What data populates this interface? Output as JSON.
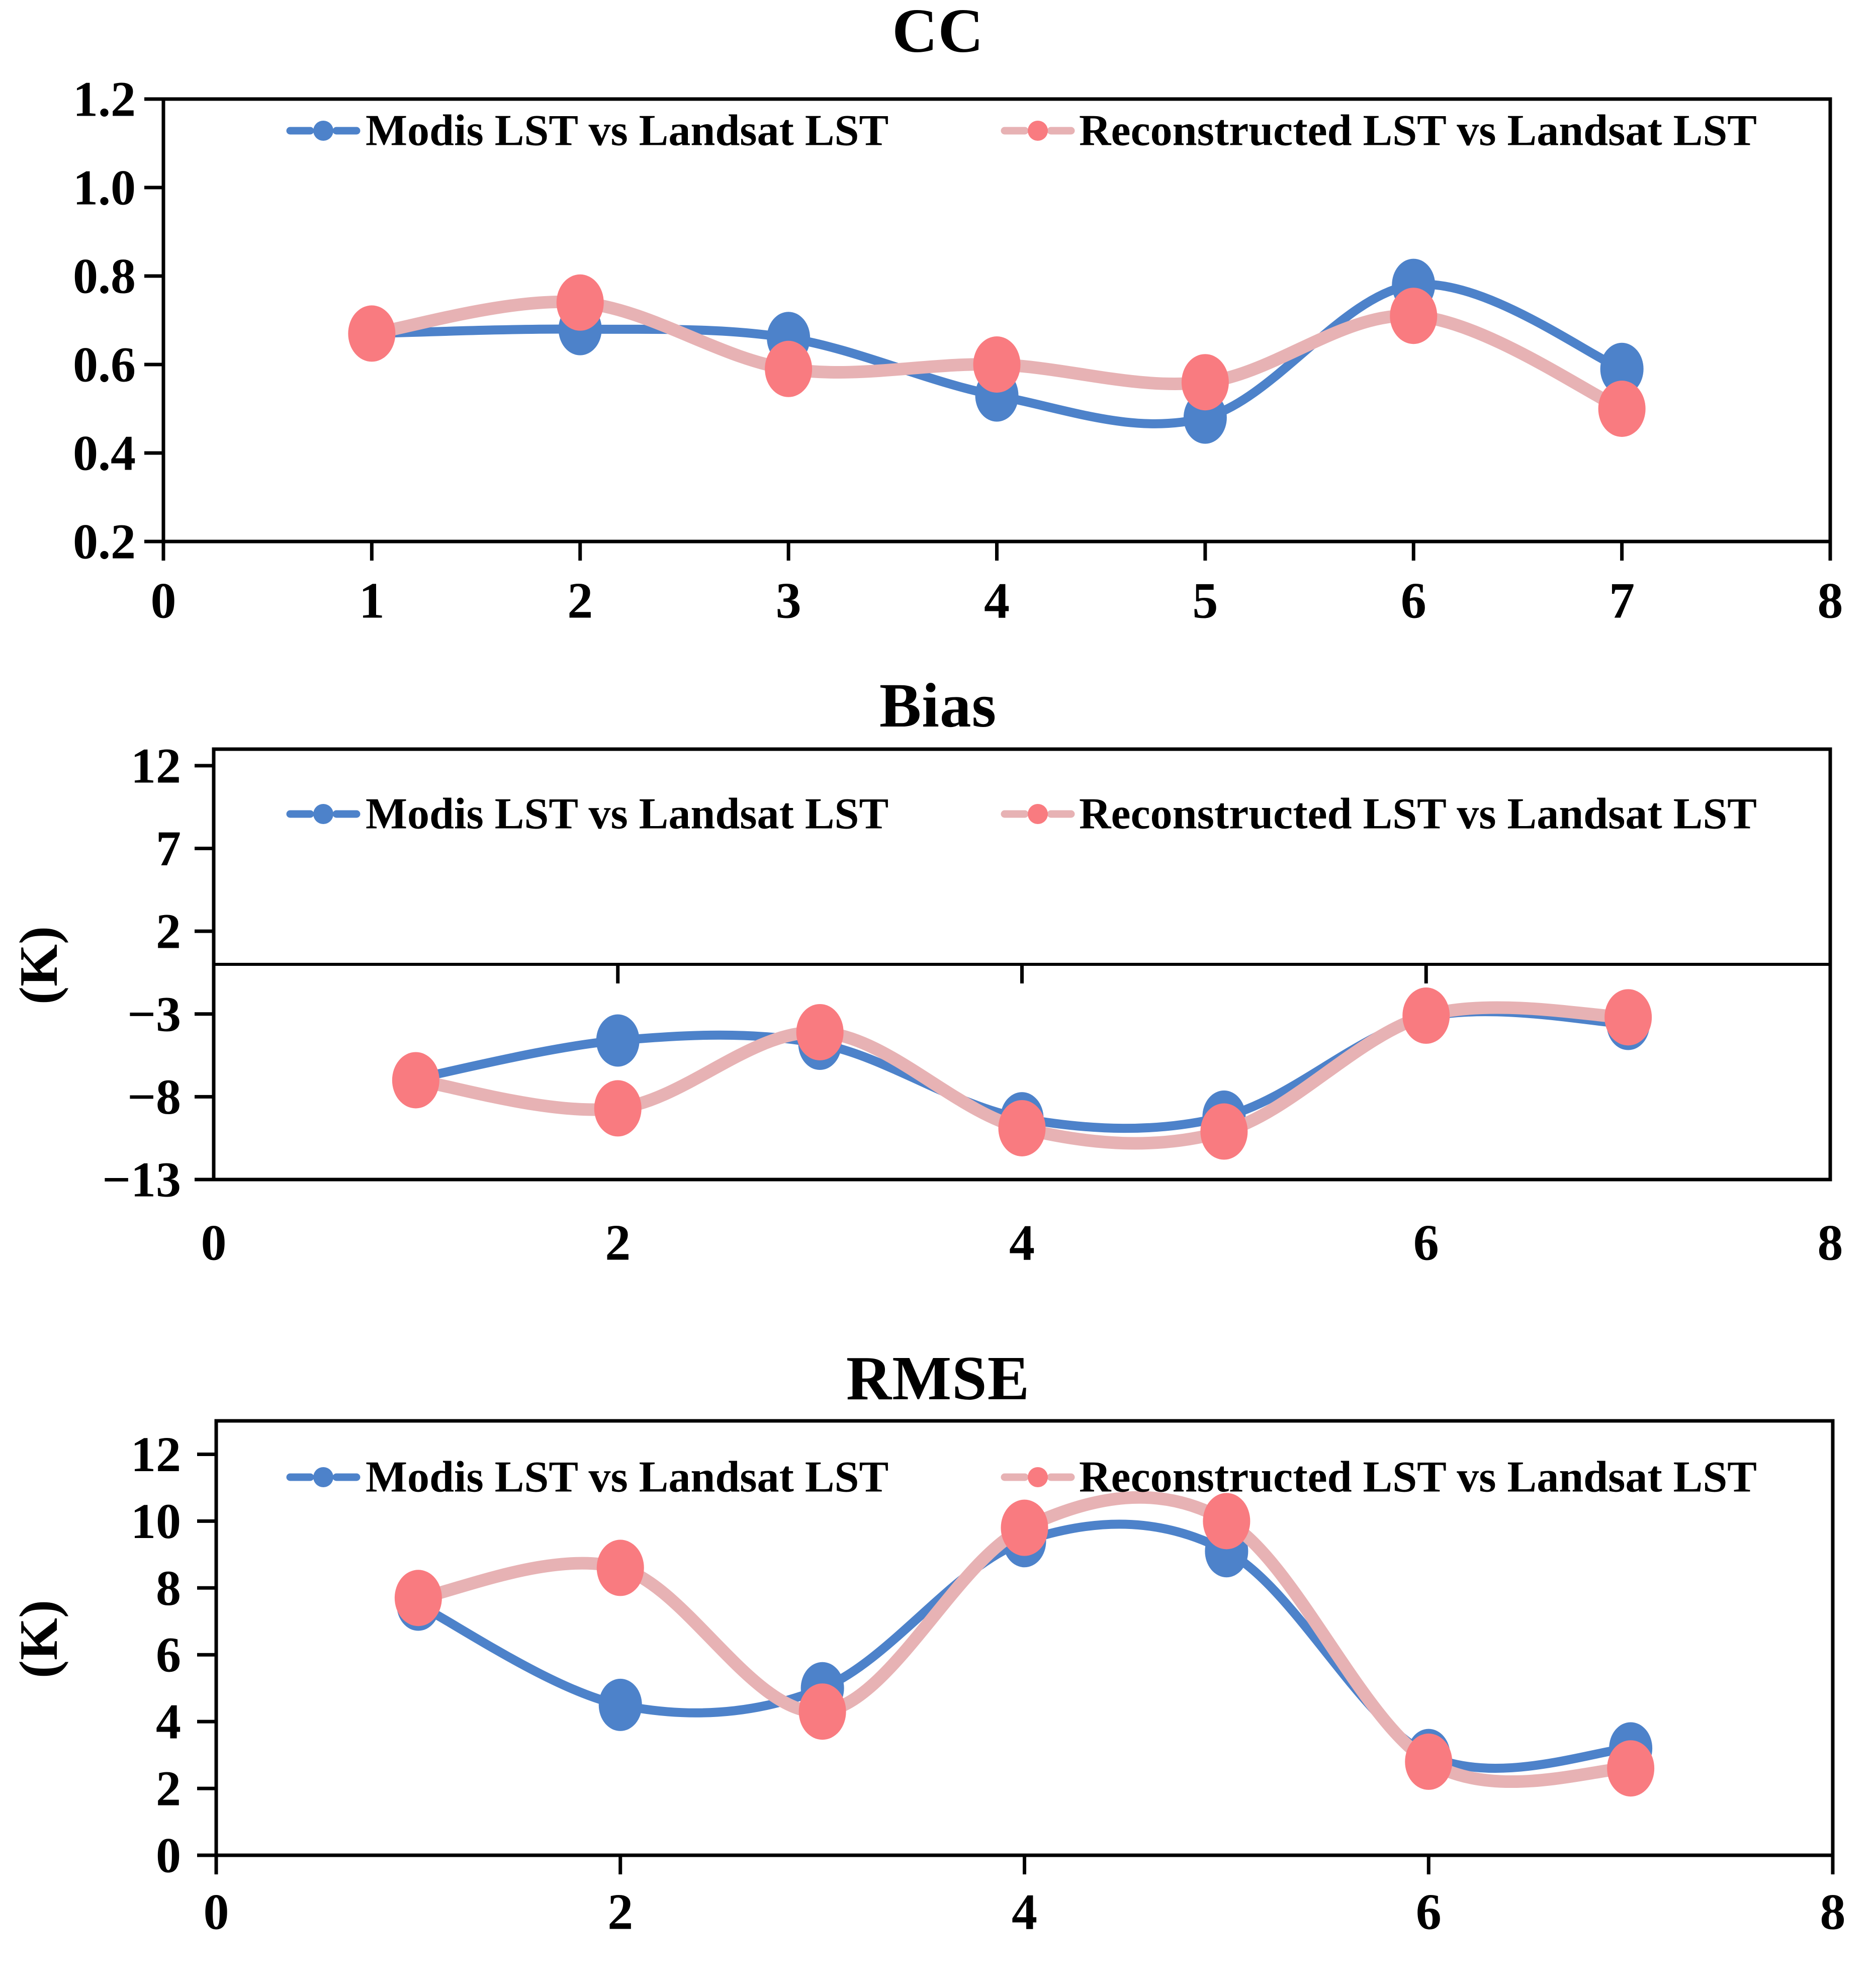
{
  "figure_title": "",
  "colors": {
    "modis": "#4d82ca",
    "reconstructed_marker": "#f97b80",
    "reconstructed_line": "#e7b2b4",
    "axis": "#000000",
    "background": "#ffffff"
  },
  "legend": {
    "modis_label": "Modis LST vs Landsat LST",
    "reconstructed_label": "Reconstructed LST vs Landsat LST",
    "position": "top-inside"
  },
  "chart_data": [
    {
      "type": "line",
      "title": "CC",
      "ylabel": "",
      "xlabel": "",
      "x": [
        1,
        2,
        3,
        4,
        5,
        6,
        7
      ],
      "series": [
        {
          "name": "Modis LST vs Landsat LST",
          "values": [
            0.67,
            0.68,
            0.66,
            0.53,
            0.48,
            0.78,
            0.59
          ]
        },
        {
          "name": "Reconstructed LST vs Landsat LST",
          "values": [
            0.67,
            0.74,
            0.59,
            0.6,
            0.56,
            0.71,
            0.5
          ]
        }
      ],
      "xlim": [
        0,
        8
      ],
      "ylim": [
        0.2,
        1.2
      ],
      "yticks": {
        "values": [
          1.2,
          1.0,
          0.8,
          0.6,
          0.4,
          0.2
        ],
        "labels": [
          "1.2",
          "1.0",
          "0.8",
          "0.6",
          "0.4",
          "0.2"
        ]
      },
      "xticks": {
        "values": [
          0,
          1,
          2,
          3,
          4,
          5,
          6,
          7,
          8
        ],
        "labels": [
          "0",
          "1",
          "2",
          "3",
          "4",
          "5",
          "6",
          "7",
          "8"
        ]
      },
      "grid": false,
      "smooth": true,
      "legend_position": "top-inside"
    },
    {
      "type": "line",
      "title": "Bias",
      "ylabel": "(K)",
      "xlabel": "",
      "x": [
        1,
        2,
        3,
        4,
        5,
        6,
        7
      ],
      "series": [
        {
          "name": "Modis LST vs Landsat LST",
          "values": [
            -6.9,
            -4.6,
            -4.8,
            -9.3,
            -9.2,
            -3.2,
            -3.6
          ]
        },
        {
          "name": "Reconstructed LST vs Landsat LST",
          "values": [
            -7.0,
            -8.7,
            -4.1,
            -9.9,
            -10.1,
            -3.1,
            -3.2
          ]
        }
      ],
      "xlim": [
        0,
        8
      ],
      "ylim": [
        -13,
        13
      ],
      "zero_axis_line": true,
      "yticks": {
        "values": [
          12,
          7,
          2,
          -3,
          -8,
          -13
        ],
        "labels": [
          "12",
          "7",
          "2",
          "−3",
          "−8",
          "−13"
        ]
      },
      "xticks": {
        "values": [
          0,
          2,
          4,
          6,
          8
        ],
        "labels": [
          "0",
          "2",
          "4",
          "6",
          "8"
        ]
      },
      "grid": false,
      "smooth": true,
      "legend_position": "top-inside"
    },
    {
      "type": "line",
      "title": "RMSE",
      "ylabel": "(K)",
      "xlabel": "",
      "x": [
        1,
        2,
        3,
        4,
        5,
        6,
        7
      ],
      "series": [
        {
          "name": "Modis LST vs Landsat LST",
          "values": [
            7.5,
            4.5,
            5.0,
            9.4,
            9.1,
            3.0,
            3.2
          ]
        },
        {
          "name": "Reconstructed LST vs Landsat LST",
          "values": [
            7.7,
            8.6,
            4.3,
            9.8,
            10.0,
            2.8,
            2.6
          ]
        }
      ],
      "xlim": [
        0,
        8
      ],
      "ylim": [
        0,
        13
      ],
      "yticks": {
        "values": [
          12,
          10,
          8,
          6,
          4,
          2,
          0
        ],
        "labels": [
          "12",
          "10",
          "8",
          "6",
          "4",
          "2",
          "0"
        ]
      },
      "xticks": {
        "values": [
          0,
          2,
          4,
          6,
          8
        ],
        "labels": [
          "0",
          "2",
          "4",
          "6",
          "8"
        ]
      },
      "grid": false,
      "smooth": true,
      "legend_position": "top-inside"
    }
  ]
}
